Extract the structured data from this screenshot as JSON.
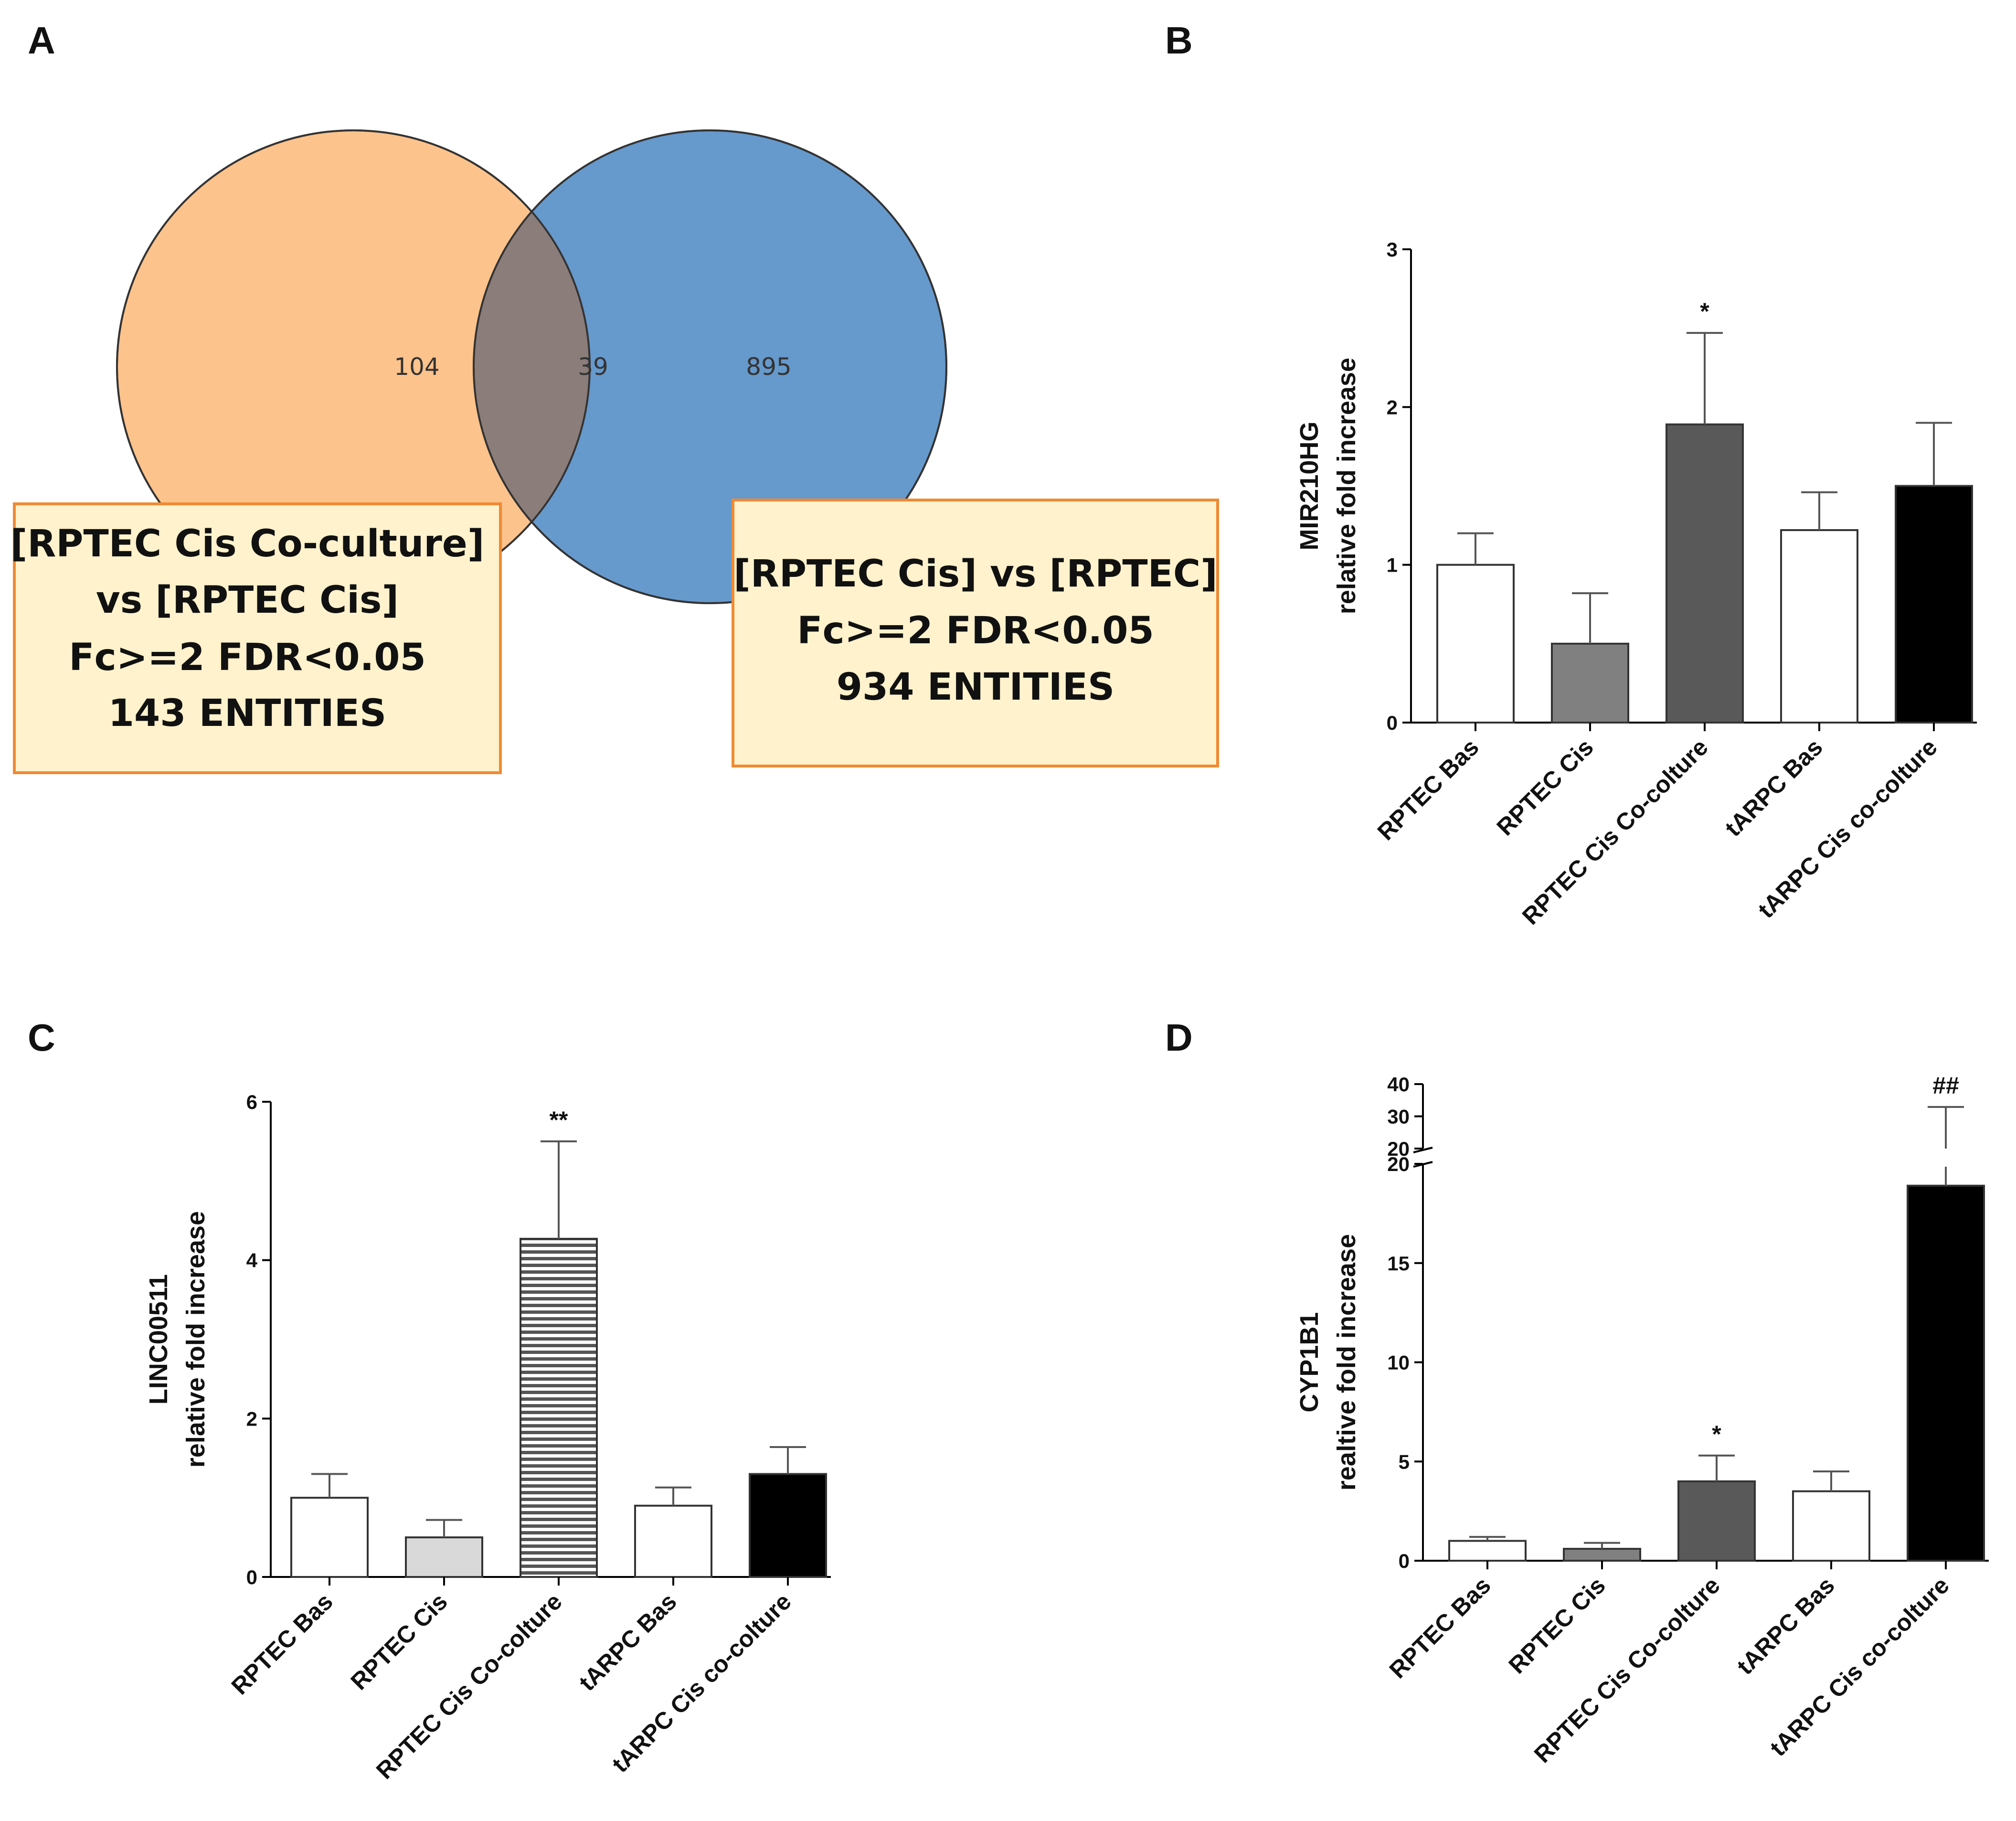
{
  "panel_labels": {
    "a": "A",
    "b": "B",
    "c": "C",
    "d": "D"
  },
  "venn": {
    "left_only": "104",
    "overlap": "39",
    "right_only": "895",
    "left_color": "#fdc38c",
    "right_color": "#6699cc",
    "overlap_color": "#8a7d7a",
    "left_box": {
      "line1": "[RPTEC Cis Co-culture]",
      "line2": "vs [RPTEC Cis]",
      "line3": "Fc>=2 FDR<0.05",
      "line4": "143 ENTITIES"
    },
    "right_box": {
      "line1": "[RPTEC Cis] vs [RPTEC]",
      "line2": "Fc>=2 FDR<0.05",
      "line3": "934 ENTITIES"
    },
    "box_fill": "#fff2cc",
    "box_border": "#f08a33"
  },
  "chart_data": [
    {
      "type": "bar",
      "panel": "B",
      "ylabel": [
        "MIR210HG",
        "relative fold increase"
      ],
      "categories": [
        "RPTEC Bas",
        "RPTEC Cis",
        "RPTEC Cis Co-colture",
        "tARPC Bas",
        "tARPC Cis co-colture"
      ],
      "values": [
        1.0,
        0.5,
        1.89,
        1.22,
        1.5
      ],
      "errors": [
        0.2,
        0.32,
        0.58,
        0.24,
        0.4
      ],
      "annotations": [
        "",
        "",
        "*",
        "",
        ""
      ],
      "fills": [
        "#ffffff",
        "#808080",
        "#595959",
        "#ffffff",
        "#000000"
      ],
      "ylim": [
        0,
        3
      ],
      "yticks": [
        0,
        1,
        2,
        3
      ]
    },
    {
      "type": "bar",
      "panel": "C",
      "ylabel": [
        "LINC00511",
        "relative fold increase"
      ],
      "categories": [
        "RPTEC Bas",
        "RPTEC Cis",
        "RPTEC Cis Co-colture",
        "tARPC Bas",
        "tARPC Cis co-colture"
      ],
      "values": [
        1.0,
        0.5,
        4.27,
        0.9,
        1.3
      ],
      "errors": [
        0.3,
        0.22,
        1.23,
        0.23,
        0.34
      ],
      "annotations": [
        "",
        "",
        "**",
        "",
        ""
      ],
      "fills": [
        "#ffffff",
        "#d9d9d9",
        "hatch",
        "#ffffff",
        "#000000"
      ],
      "ylim": [
        0,
        6
      ],
      "yticks": [
        0,
        2,
        4,
        6
      ]
    },
    {
      "type": "bar",
      "panel": "D",
      "ylabel": [
        "CYP1B1",
        "realtive fold increase"
      ],
      "categories": [
        "RPTEC Bas",
        "RPTEC Cis",
        "RPTEC Cis Co-colture",
        "tARPC Bas",
        "tARPC Cis co-colture"
      ],
      "values": [
        1.0,
        0.6,
        4.0,
        3.5,
        18.9
      ],
      "errors": [
        0.2,
        0.3,
        1.3,
        1.0,
        14.0
      ],
      "annotations": [
        "",
        "",
        "*",
        "",
        "##"
      ],
      "fills": [
        "#ffffff",
        "#808080",
        "#595959",
        "#ffffff",
        "#000000"
      ],
      "ylim": [
        0,
        20
      ],
      "yticks": [
        0,
        5,
        10,
        15,
        20
      ],
      "broken_axis": {
        "upper_ylim": [
          20,
          40
        ],
        "upper_yticks": [
          20,
          30,
          40
        ]
      }
    }
  ]
}
